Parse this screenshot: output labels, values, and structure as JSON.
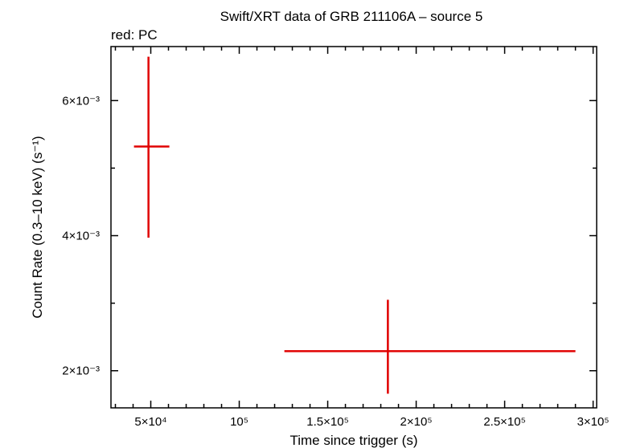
{
  "chart_data": {
    "type": "scatter",
    "title": "Swift/XRT data of GRB 211106A – source 5",
    "subtitle": "red: PC",
    "xlabel": "Time since trigger (s)",
    "ylabel": "Count Rate (0.3–10 keV) (s⁻¹)",
    "xlim": [
      27500,
      302000
    ],
    "ylim": [
      0.00145,
      0.0068
    ],
    "x_ticks": [
      {
        "value": 50000,
        "label": "5×10⁴"
      },
      {
        "value": 100000,
        "label": "10⁵"
      },
      {
        "value": 150000,
        "label": "1.5×10⁵"
      },
      {
        "value": 200000,
        "label": "2×10⁵"
      },
      {
        "value": 250000,
        "label": "2.5×10⁵"
      },
      {
        "value": 300000,
        "label": "3×10⁵"
      }
    ],
    "y_ticks": [
      {
        "value": 0.002,
        "label": "2×10⁻³"
      },
      {
        "value": 0.004,
        "label": "4×10⁻³"
      },
      {
        "value": 0.006,
        "label": "6×10⁻³"
      }
    ],
    "grid": false,
    "series": [
      {
        "color": "#e00000",
        "points": [
          {
            "x": 48700,
            "x_lo": 40500,
            "x_hi": 60500,
            "y": 0.00532,
            "y_lo": 0.00397,
            "y_hi": 0.00665
          },
          {
            "x": 184000,
            "x_lo": 125500,
            "x_hi": 290000,
            "y": 0.00229,
            "y_lo": 0.00166,
            "y_hi": 0.00305
          }
        ]
      }
    ]
  }
}
